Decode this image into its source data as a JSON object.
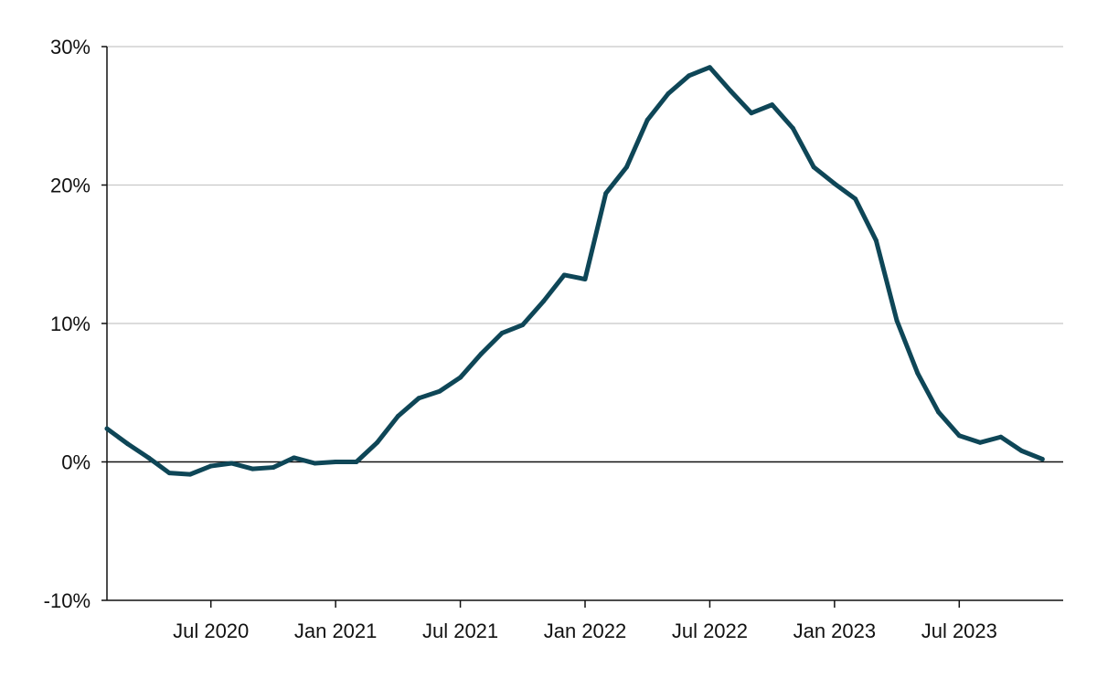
{
  "chart_data": {
    "type": "line",
    "title": "",
    "xlabel": "",
    "ylabel": "",
    "ylim": [
      -10,
      30
    ],
    "y_ticks": [
      {
        "value": -10,
        "label": "-10%"
      },
      {
        "value": 0,
        "label": "0%"
      },
      {
        "value": 10,
        "label": "10%"
      },
      {
        "value": 20,
        "label": "20%"
      },
      {
        "value": 30,
        "label": "30%"
      }
    ],
    "xlim": [
      "2020-02",
      "2023-12"
    ],
    "x_ticks": [
      {
        "value": "2020-07",
        "label": "Jul 2020"
      },
      {
        "value": "2021-01",
        "label": "Jan 2021"
      },
      {
        "value": "2021-07",
        "label": "Jul 2021"
      },
      {
        "value": "2022-01",
        "label": "Jan 2022"
      },
      {
        "value": "2022-07",
        "label": "Jul 2022"
      },
      {
        "value": "2023-01",
        "label": "Jan 2023"
      },
      {
        "value": "2023-07",
        "label": "Jul 2023"
      }
    ],
    "grid": true,
    "legend": "none",
    "series": [
      {
        "color": "#0e4657",
        "points": [
          {
            "x": "2020-02",
            "y": 2.4
          },
          {
            "x": "2020-03",
            "y": 1.3
          },
          {
            "x": "2020-04",
            "y": 0.3
          },
          {
            "x": "2020-05",
            "y": -0.8
          },
          {
            "x": "2020-06",
            "y": -0.9
          },
          {
            "x": "2020-07",
            "y": -0.3
          },
          {
            "x": "2020-08",
            "y": -0.1
          },
          {
            "x": "2020-09",
            "y": -0.5
          },
          {
            "x": "2020-10",
            "y": -0.4
          },
          {
            "x": "2020-11",
            "y": 0.3
          },
          {
            "x": "2020-12",
            "y": -0.1
          },
          {
            "x": "2021-01",
            "y": 0.0
          },
          {
            "x": "2021-02",
            "y": 0.0
          },
          {
            "x": "2021-03",
            "y": 1.4
          },
          {
            "x": "2021-04",
            "y": 3.3
          },
          {
            "x": "2021-05",
            "y": 4.6
          },
          {
            "x": "2021-06",
            "y": 5.1
          },
          {
            "x": "2021-07",
            "y": 6.1
          },
          {
            "x": "2021-08",
            "y": 7.8
          },
          {
            "x": "2021-09",
            "y": 9.3
          },
          {
            "x": "2021-10",
            "y": 9.9
          },
          {
            "x": "2021-11",
            "y": 11.6
          },
          {
            "x": "2021-12",
            "y": 13.5
          },
          {
            "x": "2022-01",
            "y": 13.2
          },
          {
            "x": "2022-02",
            "y": 19.4
          },
          {
            "x": "2022-03",
            "y": 21.3
          },
          {
            "x": "2022-04",
            "y": 24.7
          },
          {
            "x": "2022-05",
            "y": 26.6
          },
          {
            "x": "2022-06",
            "y": 27.9
          },
          {
            "x": "2022-07",
            "y": 28.5
          },
          {
            "x": "2022-08",
            "y": 26.8
          },
          {
            "x": "2022-09",
            "y": 25.2
          },
          {
            "x": "2022-10",
            "y": 25.8
          },
          {
            "x": "2022-11",
            "y": 24.1
          },
          {
            "x": "2022-12",
            "y": 21.3
          },
          {
            "x": "2023-01",
            "y": 20.1
          },
          {
            "x": "2023-02",
            "y": 19.0
          },
          {
            "x": "2023-03",
            "y": 16.0
          },
          {
            "x": "2023-04",
            "y": 10.2
          },
          {
            "x": "2023-05",
            "y": 6.4
          },
          {
            "x": "2023-06",
            "y": 3.6
          },
          {
            "x": "2023-07",
            "y": 1.9
          },
          {
            "x": "2023-08",
            "y": 1.4
          },
          {
            "x": "2023-09",
            "y": 1.8
          },
          {
            "x": "2023-10",
            "y": 0.8
          },
          {
            "x": "2023-11",
            "y": 0.2
          }
        ]
      }
    ]
  }
}
